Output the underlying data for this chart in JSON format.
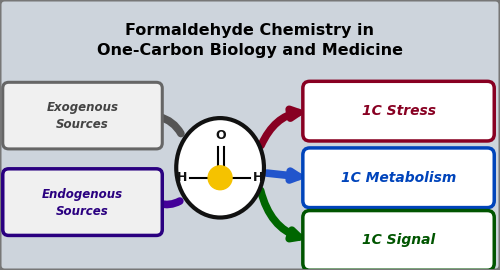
{
  "title_line1": "Formaldehyde Chemistry in",
  "title_line2": "One-Carbon Biology and Medicine",
  "title_fontsize": 11.5,
  "title_color": "#000000",
  "bg_color": "#cdd4dc",
  "border_color": "#777777",
  "exogenous_label": "Exogenous\nSources",
  "endogenous_label": "Endogenous\nSources",
  "exogenous_text_color": "#444444",
  "endogenous_text_color": "#2a0080",
  "exogenous_border_color": "#666666",
  "endogenous_border_color": "#2a0080",
  "stress_label": "1C Stress",
  "metabolism_label": "1C Metabolism",
  "signal_label": "1C Signal",
  "stress_color": "#880022",
  "metabolism_color": "#0044bb",
  "signal_color": "#005500",
  "arrow_stress_color": "#880022",
  "arrow_metabolism_color": "#2255cc",
  "arrow_signal_color": "#006600",
  "arrow_exogenous_color": "#555555",
  "arrow_endogenous_color": "#440099",
  "circle_color": "#111111",
  "carbon_color": "#f5c200",
  "oxygen_color": "#111111",
  "hydrogen_color": "#111111"
}
